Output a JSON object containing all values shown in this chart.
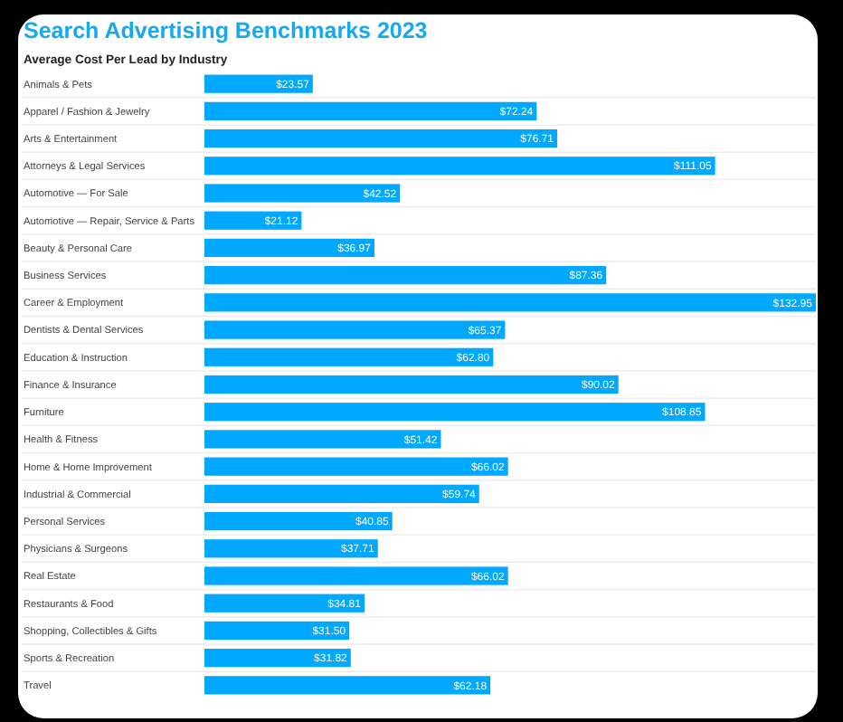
{
  "chart_data": {
    "type": "bar",
    "orientation": "horizontal",
    "title": "Search Advertising Benchmarks 2023",
    "subtitle": "Average Cost Per Lead by Industry",
    "categories": [
      "Animals & Pets",
      "Apparel / Fashion & Jewelry",
      "Arts & Entertainment",
      "Attorneys & Legal Services",
      "Automotive — For Sale",
      "Automotive — Repair, Service & Parts",
      "Beauty & Personal Care",
      "Business Services",
      "Career & Employment",
      "Dentists & Dental Services",
      "Education & Instruction",
      "Finance & Insurance",
      "Furniture",
      "Health & Fitness",
      "Home & Home Improvement",
      "Industrial & Commercial",
      "Personal Services",
      "Physicians & Surgeons",
      "Real Estate",
      "Restaurants & Food",
      "Shopping, Collectibles & Gifts",
      "Sports & Recreation",
      "Travel"
    ],
    "values": [
      23.57,
      72.24,
      76.71,
      111.05,
      42.52,
      21.12,
      36.97,
      87.36,
      132.95,
      65.37,
      62.8,
      90.02,
      108.85,
      51.42,
      66.02,
      59.74,
      40.85,
      37.71,
      66.02,
      34.81,
      31.5,
      31.82,
      62.18
    ],
    "value_labels": [
      "$23.57",
      "$72.24",
      "$76.71",
      "$111.05",
      "$42.52",
      "$21.12",
      "$36.97",
      "$87.36",
      "$132.95",
      "$65.37",
      "$62.80",
      "$90.02",
      "$108.85",
      "$51.42",
      "$66.02",
      "$59.74",
      "$40.85",
      "$37.71",
      "$66.02",
      "$34.81",
      "$31.50",
      "$31.82",
      "$62.18"
    ],
    "color": "#00a8ff",
    "grid": "y"
  }
}
